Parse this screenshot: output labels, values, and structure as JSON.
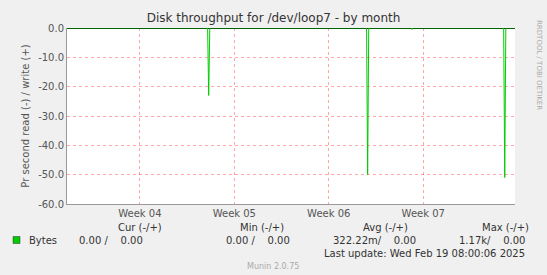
{
  "chart_data": {
    "type": "line",
    "title": "Disk throughput for /dev/loop7 - by month",
    "y_label": "Pr second read (-) / write (+)",
    "side_text": "RRDTOOL / TOBI OETIKER",
    "x": [
      0,
      10.42,
      10.5,
      10.58,
      22.2,
      22.28,
      22.36,
      25.5,
      25.55,
      25.6,
      32.36,
      32.44,
      32.52,
      33.2
    ],
    "series": [
      {
        "name": "Bytes",
        "color": "#00cc00",
        "values": [
          0,
          0,
          -23,
          0,
          0,
          -50,
          0,
          0,
          -0.5,
          0,
          0,
          -51,
          0,
          0
        ]
      }
    ],
    "xlim": [
      0,
      33.2
    ],
    "xticks": [
      {
        "value": 5.4,
        "label": "Week 04"
      },
      {
        "value": 12.4,
        "label": "Week 05"
      },
      {
        "value": 19.4,
        "label": "Week 06"
      },
      {
        "value": 26.4,
        "label": "Week 07"
      }
    ],
    "ylim": [
      -60,
      0
    ],
    "yticks": [
      {
        "value": -60,
        "label": "-60.0"
      },
      {
        "value": -50,
        "label": "-50.0"
      },
      {
        "value": -40,
        "label": "-40.0"
      },
      {
        "value": -30,
        "label": "-30.0"
      },
      {
        "value": -20,
        "label": "-20.0"
      },
      {
        "value": -10,
        "label": "-10.0"
      },
      {
        "value": 0,
        "label": "0.0"
      }
    ],
    "grid": true,
    "legend_table": {
      "headers": [
        "Cur (-/+)",
        "Min (-/+)",
        "Avg (-/+)",
        "Max (-/+)"
      ],
      "rows": [
        {
          "name": "Bytes",
          "values": [
            "0.00 /    0.00",
            "0.00 /    0.00",
            "322.22m/    0.00",
            "1.17k/    0.00"
          ]
        }
      ]
    },
    "footer": "Munin 2.0.75",
    "last_update": "Last update: Wed Feb 19 08:00:06 2025"
  }
}
